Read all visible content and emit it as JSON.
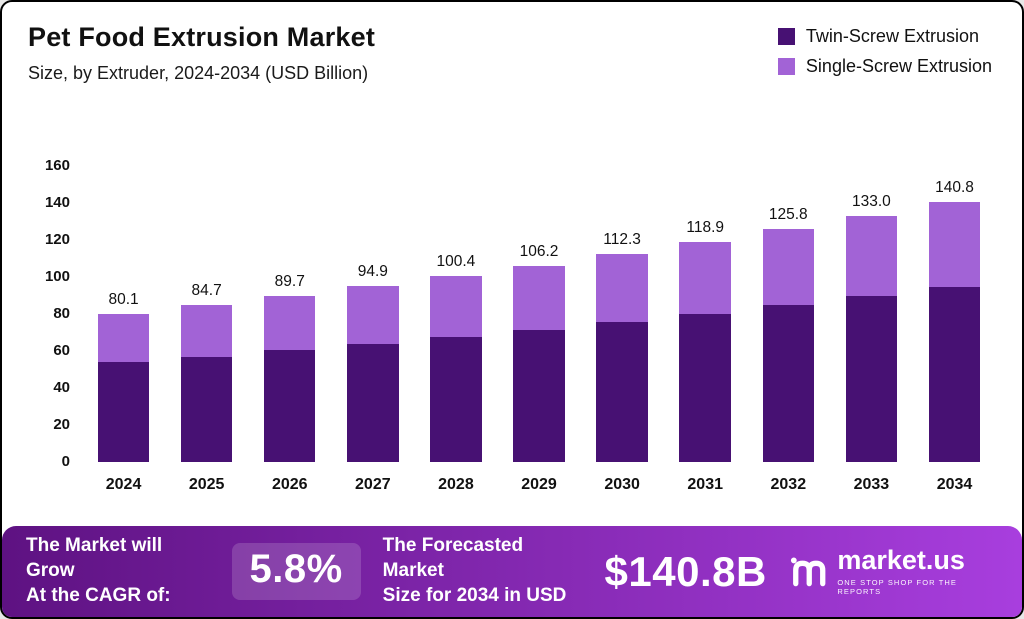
{
  "title": "Pet Food Extrusion Market",
  "subtitle": "Size, by Extruder, 2024-2034 (USD Billion)",
  "colors": {
    "twin_screw": "#471173",
    "single_screw": "#a263d6",
    "banner_from": "#5e1282",
    "banner_to": "#a83ede",
    "text": "#111111"
  },
  "legend": {
    "items": [
      {
        "label": "Twin-Screw Extrusion",
        "color": "#471173"
      },
      {
        "label": "Single-Screw Extrusion",
        "color": "#a263d6"
      }
    ]
  },
  "chart_data": {
    "type": "bar",
    "stacked": true,
    "title": "Pet Food Extrusion Market",
    "subtitle": "Size, by Extruder, 2024-2034 (USD Billion)",
    "unit": "USD Billion",
    "categories": [
      "2024",
      "2025",
      "2026",
      "2027",
      "2028",
      "2029",
      "2030",
      "2031",
      "2032",
      "2033",
      "2034"
    ],
    "series": [
      {
        "name": "Twin-Screw Extrusion",
        "color": "#471173",
        "values": [
          53.9,
          57.0,
          60.4,
          63.9,
          67.6,
          71.5,
          75.6,
          80.0,
          84.7,
          89.5,
          94.8
        ]
      },
      {
        "name": "Single-Screw Extrusion",
        "color": "#a263d6",
        "values": [
          26.2,
          27.7,
          29.3,
          31.0,
          32.8,
          34.7,
          36.7,
          38.9,
          41.1,
          43.5,
          46.0
        ]
      }
    ],
    "totals": [
      80.1,
      84.7,
      89.7,
      94.9,
      100.4,
      106.2,
      112.3,
      118.9,
      125.8,
      133.0,
      140.8
    ],
    "total_labels": [
      "80.1",
      "84.7",
      "89.7",
      "94.9",
      "100.4",
      "106.2",
      "112.3",
      "118.9",
      "125.8",
      "133.0",
      "140.8"
    ],
    "ylim": [
      0,
      160
    ],
    "yticks": [
      0,
      20,
      40,
      60,
      80,
      100,
      120,
      140,
      160
    ],
    "grid": false,
    "legend_position": "top-right"
  },
  "banner": {
    "left_line1": "The Market will Grow",
    "left_line2": "At the CAGR of:",
    "cagr": "5.8%",
    "mid_line1": "The Forecasted Market",
    "mid_line2": "Size for 2034 in USD",
    "forecast_value": "$140.8B",
    "brand_name": "market.us",
    "brand_tagline": "ONE STOP SHOP FOR THE REPORTS"
  }
}
